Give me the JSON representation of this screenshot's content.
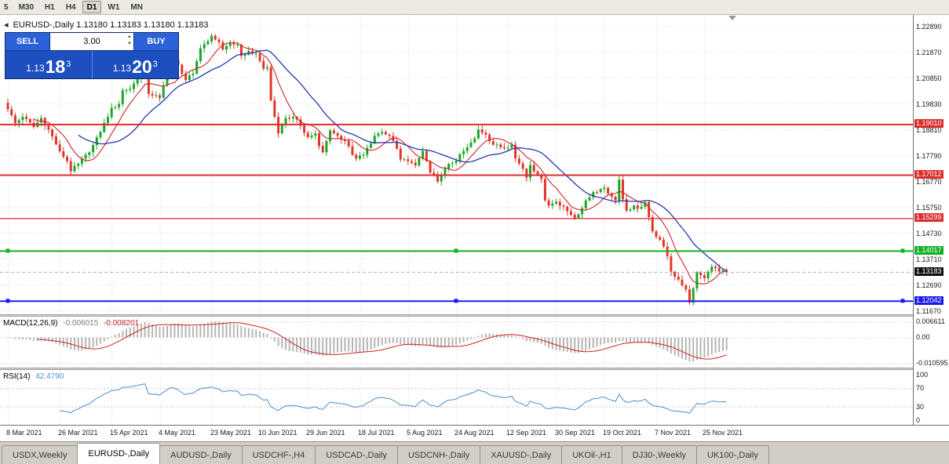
{
  "window": {
    "app": "MetaTrader chart window"
  },
  "toolbar": {
    "timeframes": [
      {
        "label": "5",
        "active": false
      },
      {
        "label": "M30",
        "active": false
      },
      {
        "label": "H1",
        "active": false
      },
      {
        "label": "H4",
        "active": false
      },
      {
        "label": "D1",
        "active": true
      },
      {
        "label": "W1",
        "active": false
      },
      {
        "label": "MN",
        "active": false
      }
    ]
  },
  "chart": {
    "symbol_title": "EURUSD-,Daily",
    "ohlc_line": "1.13180 1.13183 1.13180 1.13183",
    "collapse_icon": "◂"
  },
  "trade_panel": {
    "sell_label": "SELL",
    "buy_label": "BUY",
    "volume": "3.00",
    "spin_up_icon": "▲",
    "spin_down_icon": "▼",
    "sell_price": {
      "prefix": "1.13",
      "big": "18",
      "sup": "3"
    },
    "buy_price": {
      "prefix": "1.13",
      "big": "20",
      "sup": "3"
    }
  },
  "tabs": [
    {
      "label": "USDX,Weekly",
      "active": false
    },
    {
      "label": "EURUSD-,Daily",
      "active": true
    },
    {
      "label": "AUDUSD-,Daily",
      "active": false
    },
    {
      "label": "USDCHF-,H4",
      "active": false
    },
    {
      "label": "USDCAD-,Daily",
      "active": false
    },
    {
      "label": "USDCNH-,Daily",
      "active": false
    },
    {
      "label": "XAUUSD-,Daily",
      "active": false
    },
    {
      "label": "UKOil-,H1",
      "active": false
    },
    {
      "label": "DJ30-,Weekly",
      "active": false
    },
    {
      "label": "UK100-,Daily",
      "active": false
    }
  ],
  "chart_data": {
    "type": "candlestick",
    "symbol": "EURUSD-",
    "timeframe": "Daily",
    "num_candles": 195,
    "price_top": 1.2332,
    "price_bottom": 1.1151,
    "up_color": "#1ba626",
    "down_color": "#e0362c",
    "grid_color": "#dedede",
    "ma_fast": {
      "period": 8,
      "color": "#c8262b"
    },
    "ma_slow": {
      "period": 20,
      "color": "#1f3ab0"
    },
    "anchors": [
      [
        0,
        1.196
      ],
      [
        2,
        1.1905
      ],
      [
        4,
        1.193
      ],
      [
        7,
        1.189
      ],
      [
        9,
        1.1925
      ],
      [
        11,
        1.188
      ],
      [
        14,
        1.1794
      ],
      [
        16,
        1.1755
      ],
      [
        17,
        1.1715
      ],
      [
        19,
        1.1745
      ],
      [
        22,
        1.179
      ],
      [
        25,
        1.187
      ],
      [
        28,
        1.1966
      ],
      [
        30,
        1.198
      ],
      [
        31,
        1.2035
      ],
      [
        33,
        1.204
      ],
      [
        35,
        1.208
      ],
      [
        37,
        1.2122
      ],
      [
        38,
        1.202
      ],
      [
        40,
        1.2015
      ],
      [
        41,
        1.2005
      ],
      [
        43,
        1.21
      ],
      [
        44,
        1.2163
      ],
      [
        46,
        1.2135
      ],
      [
        48,
        1.2075
      ],
      [
        50,
        1.21
      ],
      [
        52,
        1.22
      ],
      [
        55,
        1.225
      ],
      [
        57,
        1.2225
      ],
      [
        58,
        1.2195
      ],
      [
        60,
        1.222
      ],
      [
        62,
        1.2215
      ],
      [
        63,
        1.217
      ],
      [
        65,
        1.219
      ],
      [
        67,
        1.218
      ],
      [
        69,
        1.212
      ],
      [
        70,
        1.2125
      ],
      [
        71,
        1.1995
      ],
      [
        72,
        1.193
      ],
      [
        73,
        1.1865
      ],
      [
        75,
        1.1925
      ],
      [
        77,
        1.193
      ],
      [
        79,
        1.1895
      ],
      [
        81,
        1.185
      ],
      [
        83,
        1.1865
      ],
      [
        84,
        1.1815
      ],
      [
        85,
        1.179
      ],
      [
        87,
        1.1876
      ],
      [
        89,
        1.1855
      ],
      [
        91,
        1.1835
      ],
      [
        93,
        1.178
      ],
      [
        94,
        1.1765
      ],
      [
        96,
        1.178
      ],
      [
        98,
        1.1825
      ],
      [
        99,
        1.1855
      ],
      [
        101,
        1.187
      ],
      [
        103,
        1.1855
      ],
      [
        104,
        1.1835
      ],
      [
        106,
        1.1762
      ],
      [
        108,
        1.1755
      ],
      [
        110,
        1.1738
      ],
      [
        112,
        1.1795
      ],
      [
        114,
        1.171
      ],
      [
        116,
        1.1675
      ],
      [
        117,
        1.1697
      ],
      [
        119,
        1.1745
      ],
      [
        121,
        1.1756
      ],
      [
        123,
        1.1795
      ],
      [
        124,
        1.181
      ],
      [
        126,
        1.1845
      ],
      [
        127,
        1.188
      ],
      [
        129,
        1.186
      ],
      [
        131,
        1.182
      ],
      [
        133,
        1.181
      ],
      [
        135,
        1.1808
      ],
      [
        136,
        1.182
      ],
      [
        137,
        1.1766
      ],
      [
        139,
        1.1725
      ],
      [
        140,
        1.169
      ],
      [
        141,
        1.174
      ],
      [
        143,
        1.17
      ],
      [
        144,
        1.1685
      ],
      [
        145,
        1.16
      ],
      [
        146,
        1.158
      ],
      [
        148,
        1.1595
      ],
      [
        150,
        1.1575
      ],
      [
        151,
        1.1558
      ],
      [
        153,
        1.153
      ],
      [
        155,
        1.157
      ],
      [
        156,
        1.16
      ],
      [
        158,
        1.1633
      ],
      [
        160,
        1.1645
      ],
      [
        161,
        1.165
      ],
      [
        163,
        1.1615
      ],
      [
        164,
        1.16
      ],
      [
        165,
        1.1682
      ],
      [
        166,
        1.1605
      ],
      [
        167,
        1.156
      ],
      [
        169,
        1.158
      ],
      [
        170,
        1.1567
      ],
      [
        172,
        1.1593
      ],
      [
        174,
        1.1478
      ],
      [
        176,
        1.1445
      ],
      [
        178,
        1.138
      ],
      [
        179,
        1.1319
      ],
      [
        181,
        1.1288
      ],
      [
        183,
        1.1249
      ],
      [
        184,
        1.1197
      ],
      [
        186,
        1.1317
      ],
      [
        188,
        1.1293
      ],
      [
        190,
        1.1339
      ],
      [
        192,
        1.132
      ],
      [
        194,
        1.13183
      ]
    ],
    "price_axis_ticks": [
      "1.22890",
      "1.21870",
      "1.20850",
      "1.19830",
      "1.18810",
      "1.17790",
      "1.16770",
      "1.15750",
      "1.14730",
      "1.13710",
      "1.12690",
      "1.11670"
    ],
    "price_labels": [
      {
        "text": "1.19010",
        "bg": "#dd2c2c"
      },
      {
        "text": "1.17012",
        "bg": "#dd2c2c"
      },
      {
        "text": "1.15299",
        "bg": "#dd2c2c"
      },
      {
        "text": "1.14017",
        "bg": "#0fb224"
      },
      {
        "text": "1.13183",
        "bg": "#101010"
      },
      {
        "text": "1.12042",
        "bg": "#1b1bec"
      }
    ],
    "hlines": [
      {
        "price": 1.1901,
        "color": "#dd2c2c",
        "width": 2,
        "handles": false
      },
      {
        "price": 1.17012,
        "color": "#dd2c2c",
        "width": 2,
        "handles": false
      },
      {
        "price": 1.15299,
        "color": "#dd2c2c",
        "width": 1.2,
        "handles": false
      },
      {
        "price": 1.14017,
        "color": "#0fb224",
        "width": 2,
        "handles": true
      },
      {
        "price": 1.12042,
        "color": "#1b1bec",
        "width": 2,
        "handles": true
      }
    ],
    "current_price": 1.13183,
    "date_ticks": [
      {
        "i": 0,
        "label": "8 Mar 2021"
      },
      {
        "i": 14,
        "label": "26 Mar 2021"
      },
      {
        "i": 28,
        "label": "15 Apr 2021"
      },
      {
        "i": 41,
        "label": "4 May 2021"
      },
      {
        "i": 55,
        "label": "23 May 2021"
      },
      {
        "i": 68,
        "label": "10 Jun 2021"
      },
      {
        "i": 81,
        "label": "29 Jun 2021"
      },
      {
        "i": 95,
        "label": "18 Jul 2021"
      },
      {
        "i": 108,
        "label": "5 Aug 2021"
      },
      {
        "i": 121,
        "label": "24 Aug 2021"
      },
      {
        "i": 135,
        "label": "12 Sep 2021"
      },
      {
        "i": 148,
        "label": "30 Sep 2021"
      },
      {
        "i": 161,
        "label": "19 Oct 2021"
      },
      {
        "i": 175,
        "label": "7 Nov 2021"
      },
      {
        "i": 188,
        "label": "25 Nov 2021"
      }
    ],
    "macd": {
      "name": "MACD(12,26,9)",
      "value_main": "-0.006015",
      "value_signal": "-0.008201",
      "fast": 12,
      "slow": 26,
      "signal": 9,
      "hist_color": "#b5b5b5",
      "signal_color": "#cc2222",
      "axis": [
        {
          "text": "0.006611",
          "value": 0.006611
        },
        {
          "text": "0.00",
          "value": 0
        },
        {
          "text": "-0.010595",
          "value": -0.010595
        }
      ]
    },
    "rsi": {
      "name": "RSI(14)",
      "value": "42.4790",
      "period": 14,
      "line_color": "#4a8fd0",
      "axis": [
        100,
        70,
        30,
        0
      ],
      "levels": [
        70,
        30
      ]
    }
  }
}
